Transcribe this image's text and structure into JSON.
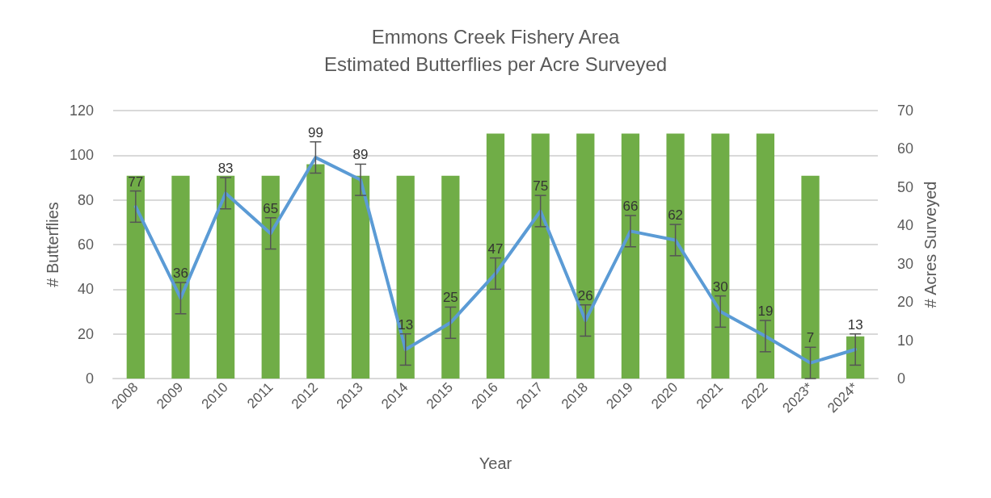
{
  "chart_data": {
    "type": "bar",
    "title": "Emmons Creek Fishery Area",
    "subtitle": "Estimated Butterflies per Acre Surveyed",
    "xlabel": "Year",
    "ylabel": "# Butterflies",
    "y2label": "# Acres Surveyed",
    "categories": [
      "2008",
      "2009",
      "2010",
      "2011",
      "2012",
      "2013",
      "2014",
      "2015",
      "2016",
      "2017",
      "2018",
      "2019",
      "2020",
      "2021",
      "2022",
      "2023*",
      "2024*"
    ],
    "series": [
      {
        "axis": "y2",
        "color": "#70ad47",
        "values": [
          53,
          53,
          53,
          53,
          56,
          53,
          53,
          53,
          64,
          64,
          64,
          64,
          64,
          64,
          64,
          53,
          11
        ]
      },
      {
        "type": "line",
        "axis": "y",
        "color": "#5b9bd5",
        "data_labels": true,
        "values": [
          77,
          36,
          83,
          65,
          99,
          89,
          13,
          25,
          47,
          75,
          26,
          66,
          62,
          30,
          19,
          7,
          13
        ],
        "errors": [
          7,
          7,
          7,
          7,
          7,
          7,
          7,
          7,
          7,
          7,
          7,
          7,
          7,
          7,
          7,
          7,
          7
        ]
      }
    ],
    "ylim": [
      0,
      120
    ],
    "yticks": [
      0,
      20,
      40,
      60,
      80,
      100,
      120
    ],
    "y2lim": [
      0,
      70
    ],
    "y2ticks": [
      0,
      10,
      20,
      30,
      40,
      50,
      60,
      70
    ],
    "grid": "y",
    "marker": "none",
    "line_style": "solid"
  }
}
